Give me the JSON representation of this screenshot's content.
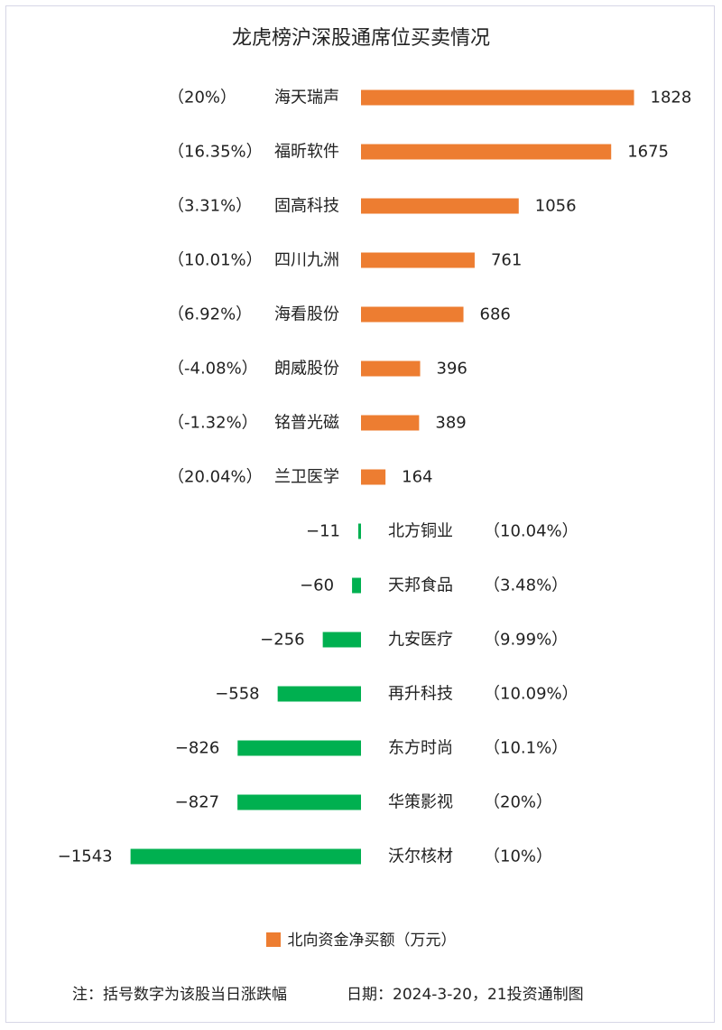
{
  "chart_data": {
    "type": "bar",
    "orientation": "horizontal",
    "title": "龙虎榜沪深股通席位买卖情况",
    "legend": "北向资金净买额（万元）",
    "legend_placement": "bottom",
    "positive_color": "#ed7d31",
    "negative_color": "#00b050",
    "categories": [
      "海天瑞声",
      "福昕软件",
      "固高科技",
      "四川九洲",
      "海看股份",
      "朗威股份",
      "铭普光磁",
      "兰卫医学",
      "北方铜业",
      "天邦食品",
      "九安医疗",
      "再升科技",
      "东方时尚",
      "华策影视",
      "沃尔核材"
    ],
    "pct_labels": [
      "（20%）",
      "（16.35%）",
      "（3.31%）",
      "（10.01%）",
      "（6.92%）",
      "（-4.08%）",
      "（-1.32%）",
      "（20.04%）",
      "（10.04%）",
      "（3.48%）",
      "（9.99%）",
      "（10.09%）",
      "（10.1%）",
      "（20%）",
      "（10%）"
    ],
    "values": [
      1828,
      1675,
      1056,
      761,
      686,
      396,
      389,
      164,
      -11,
      -60,
      -256,
      -558,
      -826,
      -827,
      -1543
    ]
  },
  "footnote": "注：括号数字为该股当日涨跌幅",
  "source": "日期：2024-3-20，21投资通制图"
}
